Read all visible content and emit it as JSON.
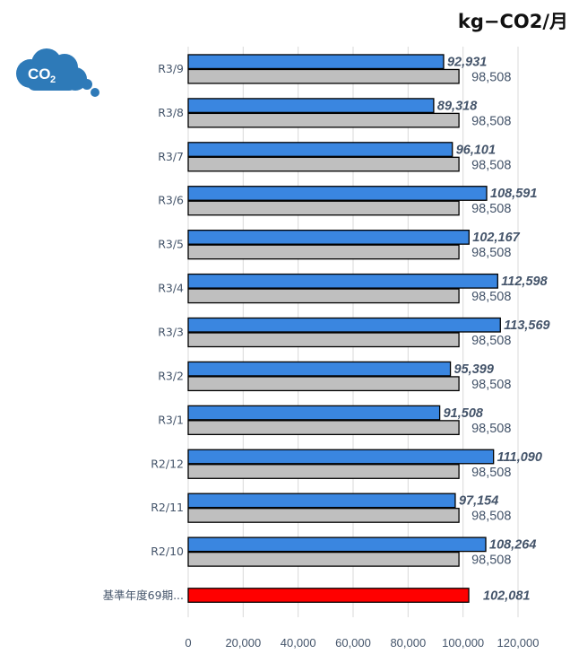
{
  "unit": "kg−CO2/月",
  "icon": {
    "name": "co2-cloud-icon",
    "text": "CO",
    "subscript": "2",
    "color": "#2e7ab8"
  },
  "colors": {
    "current": "#3a86e0",
    "baseline_gray": "#bfbfbf",
    "reference": "#ff0000",
    "label": "#44546a",
    "grid": "#d9d9d9"
  },
  "chart_data": {
    "type": "bar",
    "orientation": "horizontal",
    "categories": [
      "R3/9",
      "R3/8",
      "R3/7",
      "R3/6",
      "R3/5",
      "R3/4",
      "R3/3",
      "R3/2",
      "R3/1",
      "R2/12",
      "R2/11",
      "R2/10",
      "基準年度69期..."
    ],
    "series": [
      {
        "values": [
          92931,
          89318,
          96101,
          108591,
          102167,
          112598,
          113569,
          95399,
          91508,
          111090,
          97154,
          108264,
          null
        ],
        "labels": [
          "92,931",
          "89,318",
          "96,101",
          "108,591",
          "102,167",
          "112,598",
          "113,569",
          "95,399",
          "91,508",
          "111,090",
          "97,154",
          "108,264",
          ""
        ]
      },
      {
        "values": [
          98508,
          98508,
          98508,
          98508,
          98508,
          98508,
          98508,
          98508,
          98508,
          98508,
          98508,
          98508,
          null
        ],
        "labels": [
          "98,508",
          "98,508",
          "98,508",
          "98,508",
          "98,508",
          "98,508",
          "98,508",
          "98,508",
          "98,508",
          "98,508",
          "98,508",
          "98,508",
          ""
        ]
      },
      {
        "values": [
          null,
          null,
          null,
          null,
          null,
          null,
          null,
          null,
          null,
          null,
          null,
          null,
          102081
        ],
        "labels": [
          "",
          "",
          "",
          "",
          "",
          "",
          "",
          "",
          "",
          "",
          "",
          "",
          "102,081"
        ]
      }
    ],
    "xlim": [
      0,
      120000
    ],
    "ticks": [
      0,
      20000,
      40000,
      60000,
      80000,
      100000,
      120000
    ],
    "tick_labels": [
      "0",
      "20,000",
      "40,000",
      "60,000",
      "80,000",
      "100,000",
      "120,000"
    ],
    "grid": true,
    "legend": "none"
  }
}
